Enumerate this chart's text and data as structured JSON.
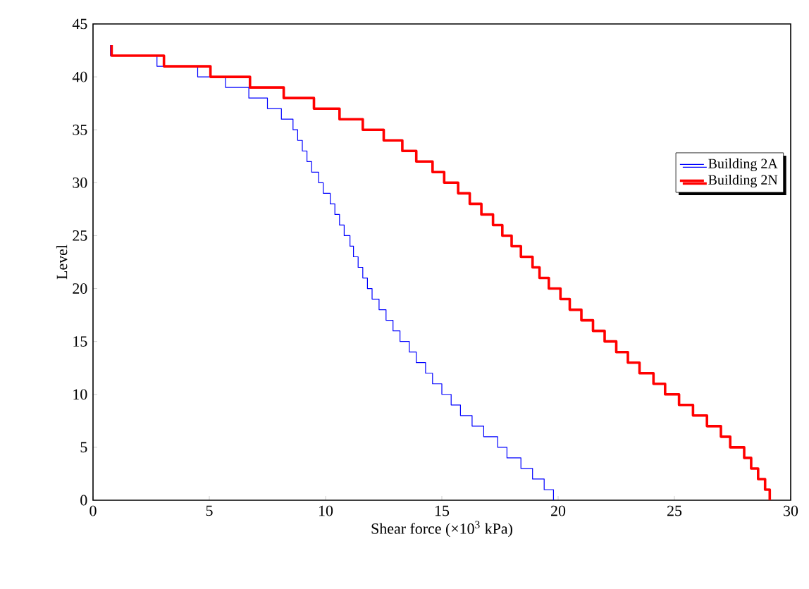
{
  "chart_data": {
    "type": "step",
    "xlabel": "Shear force (×10$^{3}$ kPa)",
    "ylabel": "Level",
    "xlim": [
      0,
      30
    ],
    "xticks": [
      0,
      5,
      10,
      15,
      20,
      25,
      30
    ],
    "ylim": [
      0,
      45
    ],
    "yticks": [
      0,
      5,
      10,
      15,
      20,
      25,
      30,
      35,
      40,
      45
    ],
    "legend": "right",
    "grid": false,
    "series": [
      {
        "name": "Building 2A",
        "color": "#0000ff",
        "x": [
          0.75,
          2.75,
          4.5,
          5.7,
          6.7,
          7.5,
          8.1,
          8.6,
          8.8,
          9.0,
          9.2,
          9.4,
          9.7,
          9.9,
          10.2,
          10.4,
          10.6,
          10.8,
          11.05,
          11.2,
          11.4,
          11.6,
          11.8,
          12.0,
          12.3,
          12.6,
          12.9,
          13.2,
          13.6,
          13.9,
          14.3,
          14.6,
          15.0,
          15.4,
          15.8,
          16.3,
          16.8,
          17.4,
          17.8,
          18.4,
          18.9,
          19.4,
          19.8,
          19.8
        ],
        "values": [
          43,
          42,
          41,
          40,
          39,
          38,
          37,
          36,
          35,
          34,
          33,
          32,
          31,
          30,
          29,
          28,
          27,
          26,
          25,
          24,
          23,
          22,
          21,
          20,
          19,
          18,
          17,
          16,
          15,
          14,
          13,
          12,
          11,
          10,
          9,
          8,
          7,
          6,
          5,
          4,
          3,
          2,
          1,
          0
        ]
      },
      {
        "name": "Building 2N",
        "color": "#ff0000",
        "x": [
          0.8,
          3.05,
          5.05,
          6.75,
          8.2,
          9.5,
          10.6,
          11.6,
          12.5,
          13.3,
          13.9,
          14.6,
          15.1,
          15.7,
          16.2,
          16.7,
          17.2,
          17.6,
          18.0,
          18.4,
          18.9,
          19.2,
          19.6,
          20.1,
          20.5,
          21.0,
          21.5,
          22.0,
          22.5,
          23.0,
          23.5,
          24.1,
          24.6,
          25.2,
          25.8,
          26.4,
          27.0,
          27.4,
          28.0,
          28.3,
          28.6,
          28.9,
          29.1,
          29.1
        ],
        "values": [
          43,
          42,
          41,
          40,
          39,
          38,
          37,
          36,
          35,
          34,
          33,
          32,
          31,
          30,
          29,
          28,
          27,
          26,
          25,
          24,
          23,
          22,
          21,
          20,
          19,
          18,
          17,
          16,
          15,
          14,
          13,
          12,
          11,
          10,
          9,
          8,
          7,
          6,
          5,
          4,
          3,
          2,
          1,
          0
        ]
      }
    ]
  }
}
